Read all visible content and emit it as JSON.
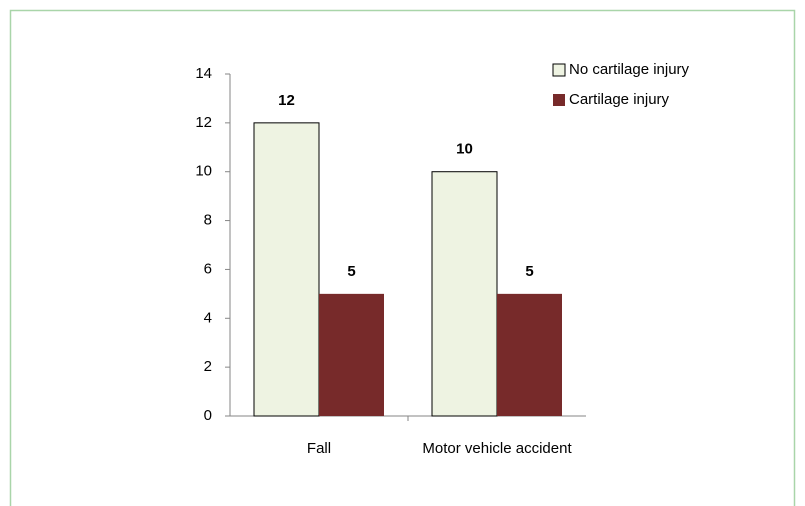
{
  "chart_data": {
    "type": "bar",
    "categories": [
      "Fall",
      "Motor vehicle accident"
    ],
    "series": [
      {
        "name": "No cartilage injury",
        "color": "#eef3e2",
        "values": [
          12,
          10
        ]
      },
      {
        "name": "Cartilage injury",
        "color": "#772a2a",
        "values": [
          5,
          5
        ]
      }
    ],
    "ylim": [
      0,
      14
    ],
    "yticks": [
      0,
      2,
      4,
      6,
      8,
      10,
      12,
      14
    ],
    "grid": false,
    "legend": "top-right",
    "data_labels": true
  }
}
